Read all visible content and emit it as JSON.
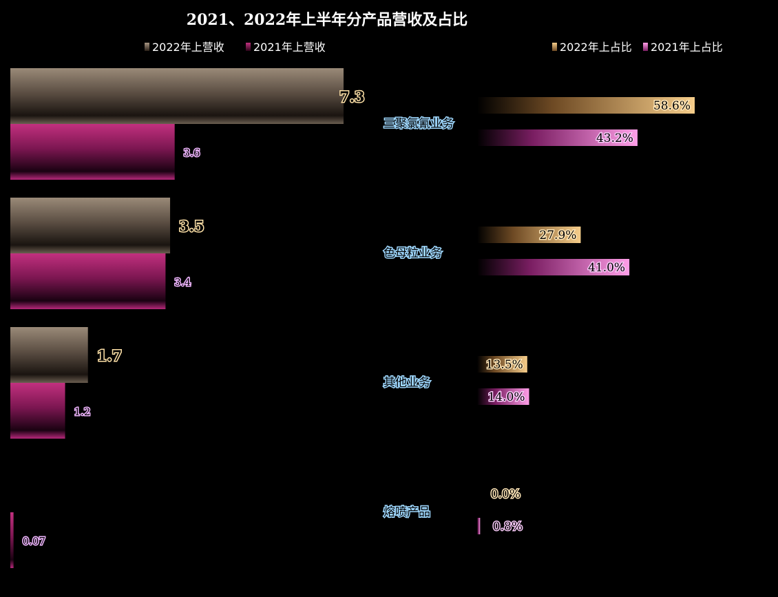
{
  "chart_data": {
    "type": "bar",
    "title": "2021、2022年上半年分产品营收及占比",
    "categories": [
      "三聚氯氰业务",
      "色母粒业务",
      "其他业务",
      "熔喷产品"
    ],
    "revenue": {
      "series": [
        {
          "name": "2022年上营收",
          "values": [
            7.3,
            3.5,
            1.7,
            0
          ],
          "labels": [
            "7.3",
            "3.5",
            "1.7",
            ""
          ],
          "color": "#8a7a6a"
        },
        {
          "name": "2021年上营收",
          "values": [
            3.6,
            3.4,
            1.2,
            0.07
          ],
          "labels": [
            "3.6",
            "3.4",
            "1.2",
            "0.07"
          ],
          "color": "#a8246e"
        }
      ]
    },
    "share": {
      "series": [
        {
          "name": "2022年上占比",
          "values": [
            58.6,
            27.9,
            13.5,
            0.0
          ],
          "labels": [
            "58.6%",
            "27.9%",
            "13.5%",
            "0.0%"
          ],
          "color": "#f2c27e"
        },
        {
          "name": "2021年上占比",
          "values": [
            43.2,
            41.0,
            14.0,
            0.8
          ],
          "labels": [
            "43.2%",
            "41.0%",
            "14.0%",
            "0.8%"
          ],
          "color": "#ff8fe0"
        }
      ]
    },
    "legend_position": "top",
    "grid": false
  }
}
